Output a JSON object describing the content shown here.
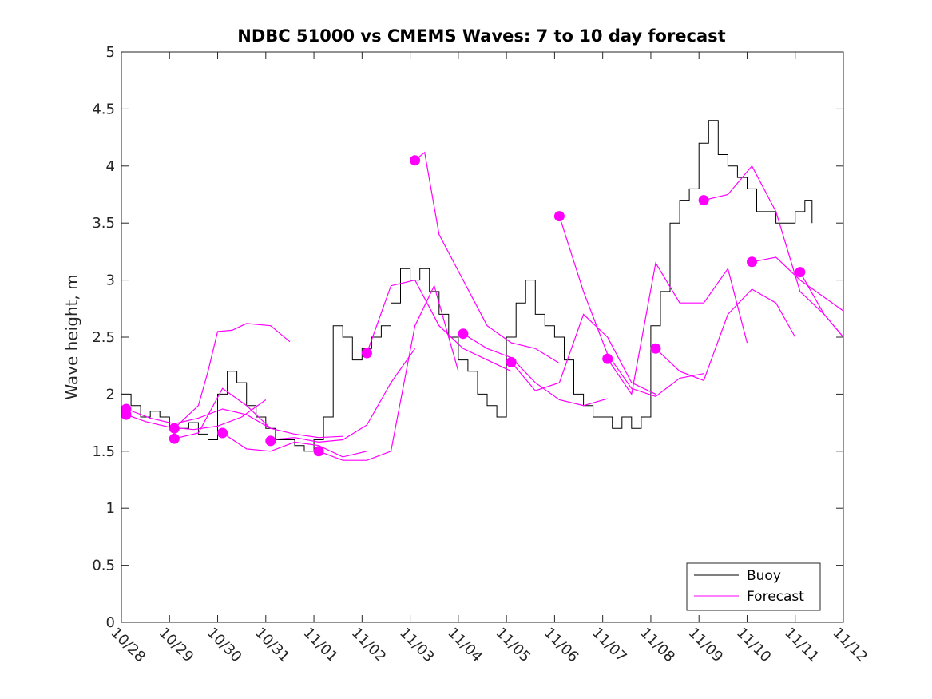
{
  "chart_data": {
    "type": "line",
    "title": "NDBC 51000 vs CMEMS Waves: 7 to 10 day forecast",
    "xlabel": "",
    "ylabel": "Wave height, m",
    "x_ticks": [
      "10/28",
      "10/29",
      "10/30",
      "10/31",
      "11/01",
      "11/02",
      "11/03",
      "11/04",
      "11/05",
      "11/06",
      "11/07",
      "11/08",
      "11/09",
      "11/10",
      "11/11",
      "11/12"
    ],
    "xlim_days": [
      0,
      15
    ],
    "ylim": [
      0,
      5
    ],
    "y_ticks": [
      "0",
      "0.5",
      "1",
      "1.5",
      "2",
      "2.5",
      "3",
      "3.5",
      "4",
      "4.5",
      "5"
    ],
    "legend": {
      "placement": "bottom-right",
      "entries": [
        "Buoy",
        "Forecast"
      ]
    },
    "colors": {
      "buoy": "#000000",
      "forecast": "#ff00ff",
      "axes": "#262626"
    },
    "series": [
      {
        "name": "Buoy",
        "x_days": [
          0,
          0.2,
          0.4,
          0.6,
          0.8,
          1.0,
          1.2,
          1.4,
          1.6,
          1.8,
          2.0,
          2.2,
          2.4,
          2.6,
          2.8,
          3.0,
          3.2,
          3.4,
          3.6,
          3.8,
          4.0,
          4.2,
          4.4,
          4.6,
          4.8,
          5.0,
          5.2,
          5.4,
          5.6,
          5.8,
          6.0,
          6.2,
          6.4,
          6.6,
          6.8,
          7.0,
          7.2,
          7.4,
          7.6,
          7.8,
          8.0,
          8.2,
          8.4,
          8.6,
          8.8,
          9.0,
          9.2,
          9.4,
          9.6,
          9.8,
          10.0,
          10.2,
          10.4,
          10.6,
          10.8,
          11.0,
          11.2,
          11.4,
          11.6,
          11.8,
          12.0,
          12.2,
          12.4,
          12.6,
          12.8,
          13.0,
          13.2,
          13.4,
          13.6,
          13.8,
          14.0,
          14.2,
          14.35
        ],
        "values": [
          2.0,
          1.9,
          1.8,
          1.85,
          1.8,
          1.7,
          1.7,
          1.75,
          1.65,
          1.6,
          2.0,
          2.2,
          2.1,
          1.9,
          1.8,
          1.7,
          1.6,
          1.6,
          1.55,
          1.5,
          1.6,
          1.8,
          2.6,
          2.5,
          2.3,
          2.4,
          2.5,
          2.6,
          2.8,
          3.1,
          3.0,
          3.1,
          2.9,
          2.7,
          2.5,
          2.3,
          2.2,
          2.0,
          1.9,
          1.8,
          2.5,
          2.8,
          3.0,
          2.7,
          2.6,
          2.5,
          2.3,
          2.0,
          1.9,
          1.8,
          1.8,
          1.7,
          1.8,
          1.7,
          1.8,
          2.6,
          2.9,
          3.5,
          3.7,
          3.8,
          4.2,
          4.4,
          4.1,
          4.0,
          3.9,
          3.8,
          3.6,
          3.6,
          3.5,
          3.5,
          3.6,
          3.7,
          3.5
        ]
      },
      {
        "name": "Forecast",
        "x_days": [
          0.1,
          0.5,
          1.0,
          1.5,
          2.0,
          2.5,
          3.0
        ],
        "values": [
          1.82,
          1.76,
          1.71,
          1.69,
          1.72,
          1.8,
          1.95
        ]
      },
      {
        "name": "Forecast",
        "x_days": [
          0.1,
          0.6,
          1.1,
          1.6,
          2.1,
          2.6,
          3.1
        ],
        "values": [
          1.87,
          1.79,
          1.74,
          1.79,
          1.87,
          1.82,
          1.7
        ]
      },
      {
        "name": "Forecast",
        "x_days": [
          1.1,
          1.6,
          1.8,
          2.0,
          2.3,
          2.6,
          3.1,
          3.5
        ],
        "values": [
          1.7,
          1.9,
          2.2,
          2.55,
          2.56,
          2.62,
          2.6,
          2.46
        ]
      },
      {
        "name": "Forecast",
        "x_days": [
          1.1,
          1.6,
          2.1,
          2.6,
          3.1,
          3.6,
          4.1,
          4.6
        ],
        "values": [
          1.61,
          1.66,
          2.05,
          1.9,
          1.7,
          1.65,
          1.62,
          1.63
        ]
      },
      {
        "name": "Forecast",
        "x_days": [
          2.1,
          2.6,
          3.1,
          3.6,
          4.1,
          4.6,
          5.1
        ],
        "values": [
          1.66,
          1.52,
          1.5,
          1.58,
          1.55,
          1.45,
          1.5
        ]
      },
      {
        "name": "Forecast",
        "x_days": [
          3.1,
          3.6,
          4.1,
          4.6,
          5.1,
          5.6,
          6.1
        ],
        "values": [
          1.6,
          1.62,
          1.58,
          1.6,
          1.73,
          2.1,
          2.4
        ]
      },
      {
        "name": "Forecast",
        "x_days": [
          4.1,
          4.6,
          5.1,
          5.6,
          6.1,
          6.5,
          7.0
        ],
        "values": [
          1.5,
          1.42,
          1.42,
          1.5,
          2.6,
          2.95,
          2.2
        ]
      },
      {
        "name": "Forecast",
        "x_days": [
          5.1,
          5.6,
          6.1,
          6.6,
          7.1,
          7.6,
          8.1
        ],
        "values": [
          2.36,
          2.95,
          3.0,
          2.6,
          2.4,
          2.3,
          2.2
        ]
      },
      {
        "name": "Forecast",
        "x_days": [
          6.1,
          6.3,
          6.6,
          7.1,
          7.6,
          8.1,
          8.6,
          9.1
        ],
        "values": [
          4.05,
          4.12,
          3.4,
          3.0,
          2.6,
          2.45,
          2.4,
          2.27
        ]
      },
      {
        "name": "Forecast",
        "x_days": [
          7.1,
          7.6,
          8.1,
          8.6,
          9.1,
          9.6,
          10.1
        ],
        "values": [
          2.53,
          2.4,
          2.32,
          2.1,
          1.95,
          1.9,
          1.96
        ]
      },
      {
        "name": "Forecast",
        "x_days": [
          8.1,
          8.6,
          9.1,
          9.6,
          10.1,
          10.6,
          11.1
        ],
        "values": [
          2.28,
          2.03,
          2.1,
          2.7,
          2.5,
          2.1,
          2.0
        ]
      },
      {
        "name": "Forecast",
        "x_days": [
          9.1,
          9.6,
          10.1,
          10.6,
          11.1,
          11.6,
          12.1
        ],
        "values": [
          3.56,
          2.9,
          2.35,
          2.05,
          1.98,
          2.14,
          2.18
        ]
      },
      {
        "name": "Forecast",
        "x_days": [
          10.1,
          10.6,
          11.1,
          11.6,
          12.1,
          12.6,
          13.0
        ],
        "values": [
          2.31,
          2.0,
          3.15,
          2.8,
          2.8,
          3.1,
          2.45
        ]
      },
      {
        "name": "Forecast",
        "x_days": [
          11.1,
          11.6,
          12.1,
          12.6,
          13.1,
          13.6,
          14.0
        ],
        "values": [
          2.4,
          2.2,
          2.12,
          2.7,
          2.92,
          2.8,
          2.5
        ]
      },
      {
        "name": "Forecast",
        "x_days": [
          12.1,
          12.6,
          13.1,
          13.6,
          14.1,
          14.6,
          15.0
        ],
        "values": [
          3.7,
          3.75,
          4.0,
          3.6,
          2.9,
          2.7,
          2.5
        ]
      },
      {
        "name": "Forecast",
        "x_days": [
          13.1,
          13.6,
          14.1,
          14.6,
          15.0
        ],
        "values": [
          3.16,
          3.2,
          3.0,
          2.85,
          2.73
        ]
      },
      {
        "name": "Forecast",
        "x_days": [
          14.1,
          14.6,
          15.0
        ],
        "values": [
          3.07,
          2.7,
          2.5
        ]
      }
    ],
    "forecast_markers": {
      "x_days": [
        0.1,
        0.1,
        1.1,
        1.1,
        2.1,
        3.1,
        4.1,
        5.1,
        6.1,
        7.1,
        8.1,
        9.1,
        10.1,
        11.1,
        12.1,
        13.1,
        14.1
      ],
      "values": [
        1.82,
        1.87,
        1.61,
        1.7,
        1.66,
        1.59,
        1.5,
        2.36,
        4.05,
        2.53,
        2.28,
        3.56,
        2.31,
        2.4,
        3.7,
        3.16,
        3.07
      ]
    }
  }
}
